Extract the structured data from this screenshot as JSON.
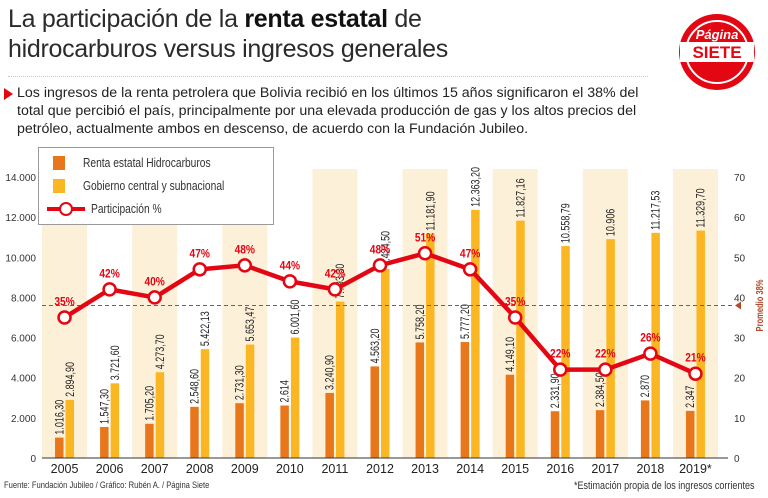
{
  "header": {
    "title_part1": "La participación de la ",
    "title_bold": "renta estatal",
    "title_part2": " de",
    "title_line2": "hidrocarburos versus ingresos generales"
  },
  "logo": {
    "line1": "Página",
    "line2": "SIETE",
    "color": "#e30613"
  },
  "intro": "Los ingresos de la renta petrolera que Bolivia recibió en los últimos 15 años significaron el 38% del total que percibió el país, principalmente por una elevada producción de gas y los altos precios del petróleo, actualmente ambos en descenso,  de acuerdo con la Fundación Jubileo.",
  "footer": {
    "source": "Fuente: Fundación Jubileo / Gráfico: Rubén A. / Página Siete",
    "note": "*Estimación propia de los ingresos corrientes"
  },
  "colors": {
    "renta": "#e8761b",
    "gobierno": "#fbb623",
    "participacion": "#e30613",
    "band": "#fdf0d9",
    "average": "#b04a2a"
  },
  "chart_data": {
    "type": "bar",
    "categories": [
      "2005",
      "2006",
      "2007",
      "2008",
      "2009",
      "2010",
      "2011",
      "2012",
      "2013",
      "2014",
      "2015",
      "2016",
      "2017",
      "2018",
      "2019*"
    ],
    "series": [
      {
        "name": "Renta estatal Hidrocarburos",
        "axis": "left",
        "values": [
          1016.3,
          1547.3,
          1705.2,
          2548.6,
          2731.3,
          2614,
          3240.9,
          4563.2,
          5758.2,
          5777.2,
          4149.1,
          2331.9,
          2384.5,
          2870,
          2347
        ],
        "labels": [
          "1.016,30",
          "1.547,30",
          "1.705,20",
          "2.548,60",
          "2.731,30",
          "2.614",
          "3.240,90",
          "4.563,20",
          "5.758,20",
          "5.777,20",
          "4.149,10",
          "2.331,90",
          "2.384,50",
          "2.870",
          "2.347"
        ]
      },
      {
        "name": "Gobierno central y subnacional",
        "axis": "left",
        "values": [
          2894.9,
          3721.6,
          4273.7,
          5422.13,
          5653.47,
          6001.6,
          7793.3,
          9424.5,
          11181.9,
          12363.2,
          11827.16,
          10558.79,
          10906,
          11217.53,
          11329.7
        ],
        "labels": [
          "2.894,90",
          "3.721,60",
          "4.273,70",
          "5.422,13",
          "5.653,47",
          "6.001,60",
          "7.793,30",
          "9.424,50",
          "11.181,90",
          "12.363,20",
          "11.827,16",
          "10.558,79",
          "10.906",
          "11.217,53",
          "11.329,70"
        ]
      },
      {
        "name": "Participación %",
        "type": "line",
        "axis": "right",
        "values": [
          35,
          42,
          40,
          47,
          48,
          44,
          42,
          48,
          51,
          47,
          35,
          22,
          22,
          26,
          21
        ],
        "labels": [
          "35%",
          "42%",
          "40%",
          "47%",
          "48%",
          "44%",
          "42%",
          "48%",
          "51%",
          "47%",
          "35%",
          "22%",
          "22%",
          "26%",
          "21%"
        ]
      }
    ],
    "left_axis": {
      "ylim": [
        0,
        14000
      ],
      "ticks": [
        "0",
        "2.000",
        "4.000",
        "6.000",
        "8.000",
        "10.000",
        "12.000",
        "14.000"
      ]
    },
    "right_axis": {
      "ylim": [
        0,
        70
      ],
      "ticks": [
        "0",
        "10",
        "20",
        "30",
        "40",
        "50",
        "60",
        "70"
      ]
    },
    "average": {
      "value": 38,
      "label": "Promedio 38%"
    },
    "grid": false,
    "legend": "top-left"
  }
}
